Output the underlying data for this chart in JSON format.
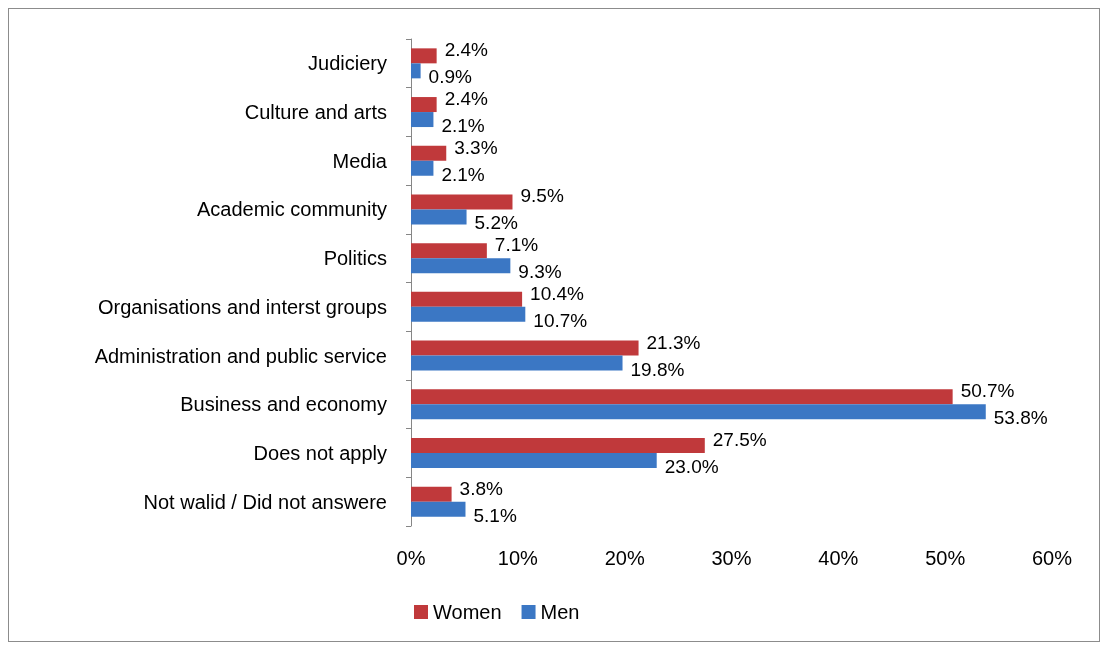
{
  "chart_data": {
    "type": "bar",
    "orientation": "horizontal",
    "categories": [
      "Judiciery",
      "Culture and arts",
      "Media",
      "Academic community",
      "Politics",
      "Organisations and interst groups",
      "Administration and public service",
      "Business and economy",
      "Does not apply",
      "Not walid / Did not answere"
    ],
    "series": [
      {
        "name": "Women",
        "color": "#c0393b",
        "values": [
          2.4,
          2.4,
          3.3,
          9.5,
          7.1,
          10.4,
          21.3,
          50.7,
          27.5,
          3.8
        ],
        "value_labels": [
          "2.4%",
          "2.4%",
          "3.3%",
          "9.5%",
          "7.1%",
          "10.4%",
          "21.3%",
          "50.7%",
          "27.5%",
          "3.8%"
        ]
      },
      {
        "name": "Men",
        "color": "#3b77c4",
        "values": [
          0.9,
          2.1,
          2.1,
          5.2,
          9.3,
          10.7,
          19.8,
          53.8,
          23.0,
          5.1
        ],
        "value_labels": [
          "0.9%",
          "2.1%",
          "2.1%",
          "5.2%",
          "9.3%",
          "10.7%",
          "19.8%",
          "53.8%",
          "23.0%",
          "5.1%"
        ]
      }
    ],
    "xlim": [
      0,
      60
    ],
    "xticks": [
      {
        "value": 0,
        "label": "0%"
      },
      {
        "value": 10,
        "label": "10%"
      },
      {
        "value": 20,
        "label": "20%"
      },
      {
        "value": 30,
        "label": "30%"
      },
      {
        "value": 40,
        "label": "40%"
      },
      {
        "value": 50,
        "label": "50%"
      },
      {
        "value": 60,
        "label": "60%"
      }
    ],
    "grid": false,
    "legend": "bottom"
  }
}
